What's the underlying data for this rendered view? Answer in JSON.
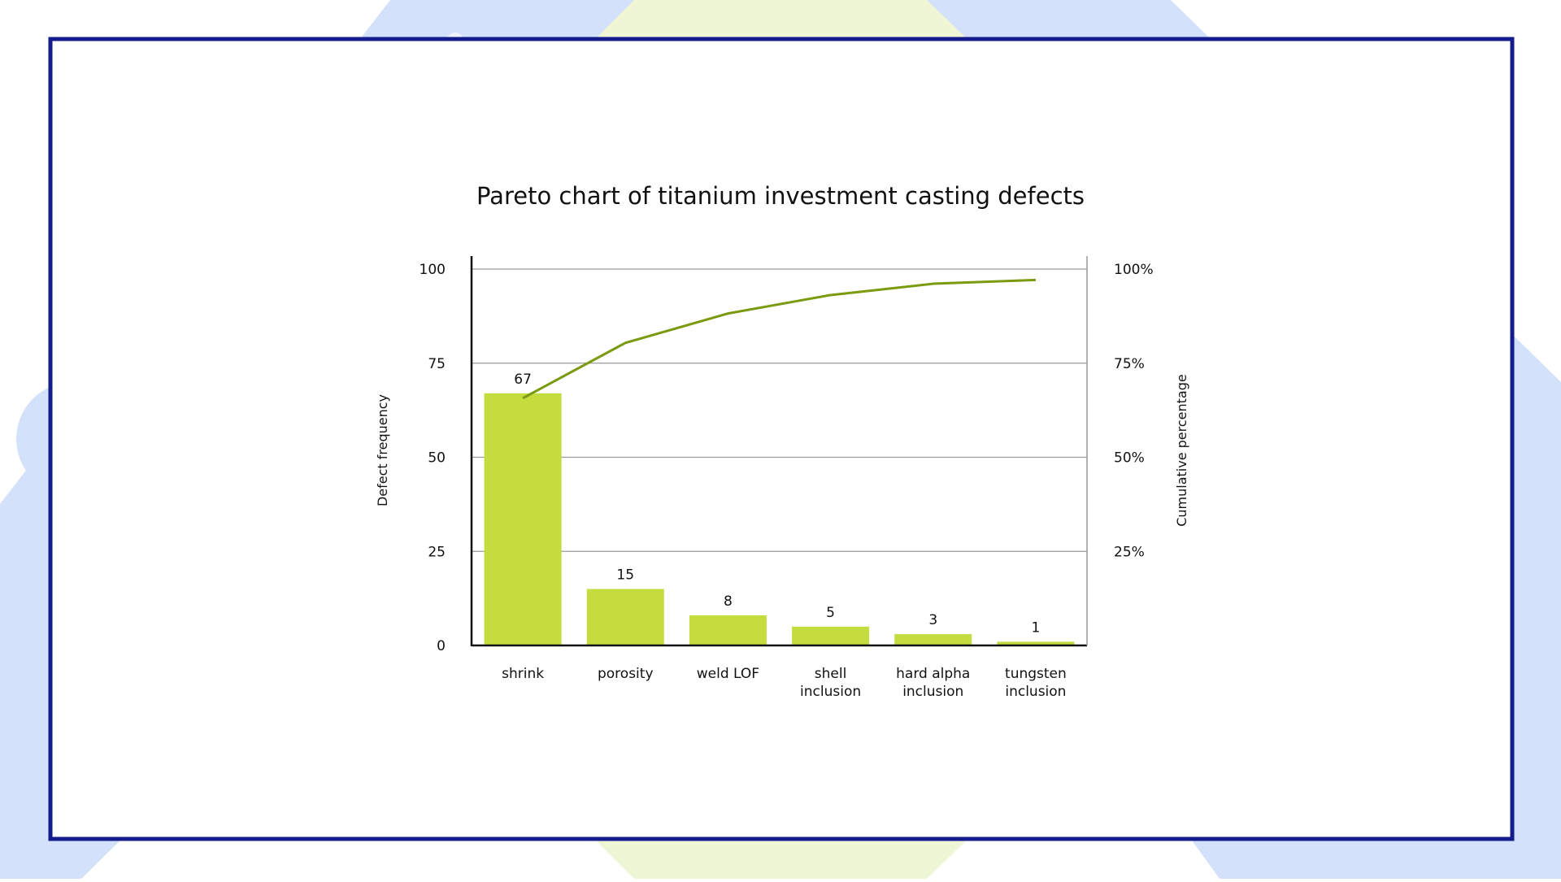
{
  "chart_data": {
    "type": "bar",
    "title": "Pareto chart of titanium investment casting defects",
    "categories": [
      [
        "shrink"
      ],
      [
        "porosity"
      ],
      [
        "weld LOF"
      ],
      [
        "shell",
        "inclusion"
      ],
      [
        "hard alpha",
        "inclusion"
      ],
      [
        "tungsten",
        "inclusion"
      ]
    ],
    "values": [
      67,
      15,
      8,
      5,
      3,
      1
    ],
    "value_labels": [
      "67",
      "15",
      "8",
      "5",
      "3",
      "1"
    ],
    "cumulative_percent": [
      65.7,
      80.4,
      88.2,
      93.1,
      96.1,
      97.1
    ],
    "ylabel": "Defect frequency",
    "y2label": "Cumulative percentage",
    "ylim": [
      0,
      100
    ],
    "y2lim": [
      0,
      100
    ],
    "yticks": [
      "0",
      "25",
      "50",
      "75",
      "100"
    ],
    "y2ticks": [
      "25%",
      "50%",
      "75%",
      "100%"
    ],
    "grid": true,
    "legend": "none"
  },
  "colors": {
    "bar": "#c4dc3e",
    "line": "#7a9a10",
    "frame": "#141c8c",
    "grid": "#9a9a9a",
    "axis": "#111111",
    "bg_blue": "#d3e1fb",
    "bg_blue_light": "#eef4fd",
    "bg_yellow": "#eef6d6",
    "bg_yellow_light": "#fafcf2"
  }
}
